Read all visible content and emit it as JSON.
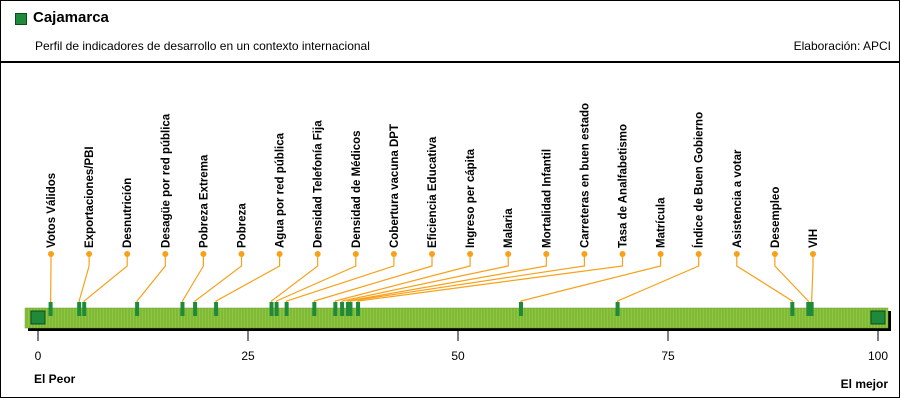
{
  "header": {
    "title": "Cajamarca",
    "subtitle": "Perfil de indicadores de desarrollo en un contexto internacional",
    "credit": "Elaboración: APCI"
  },
  "colors": {
    "bar_green": "#8ec63f",
    "marker_green": "#1f8a3a",
    "leader_orange": "#f7a11a",
    "text": "#000000"
  },
  "chart_data": {
    "type": "scatter",
    "title": "Cajamarca",
    "xlim": [
      0,
      100
    ],
    "x_ticks": [
      0,
      25,
      50,
      75,
      100
    ],
    "x_tick_labels": [
      "0",
      "25",
      "50",
      "75",
      "100"
    ],
    "left_label": "El Peor",
    "right_label": "El mejor",
    "indicators": [
      {
        "label": "Votos Válidos",
        "value": 1.5
      },
      {
        "label": "Exportaciones/PBI",
        "value": 4.9
      },
      {
        "label": "Desnutrición",
        "value": 5.5
      },
      {
        "label": "Desagüe por red pública",
        "value": 11.8
      },
      {
        "label": "Pobreza Extrema",
        "value": 17.2
      },
      {
        "label": "Pobreza",
        "value": 18.7
      },
      {
        "label": "Agua por red pública",
        "value": 21.2
      },
      {
        "label": "Densidad Telefonía Fija",
        "value": 27.8
      },
      {
        "label": "Densidad de Médicos",
        "value": 28.4
      },
      {
        "label": "Cobertura vacuna DPT",
        "value": 29.6
      },
      {
        "label": "Eficiencia Educativa",
        "value": 32.9
      },
      {
        "label": "Ingreso per cápita",
        "value": 35.4
      },
      {
        "label": "Malaria",
        "value": 36.2
      },
      {
        "label": "Mortalidad Infantil",
        "value": 36.9
      },
      {
        "label": "Carreteras en buen estado",
        "value": 37.2
      },
      {
        "label": "Tasa de Analfabetismo",
        "value": 38.1
      },
      {
        "label": "Matrícula",
        "value": 57.5
      },
      {
        "label": "Índice de Buen Gobierno",
        "value": 69.0
      },
      {
        "label": "Asistencia a votar",
        "value": 89.8
      },
      {
        "label": "Desempleo",
        "value": 91.7
      },
      {
        "label": "VIH",
        "value": 92.1
      }
    ]
  }
}
